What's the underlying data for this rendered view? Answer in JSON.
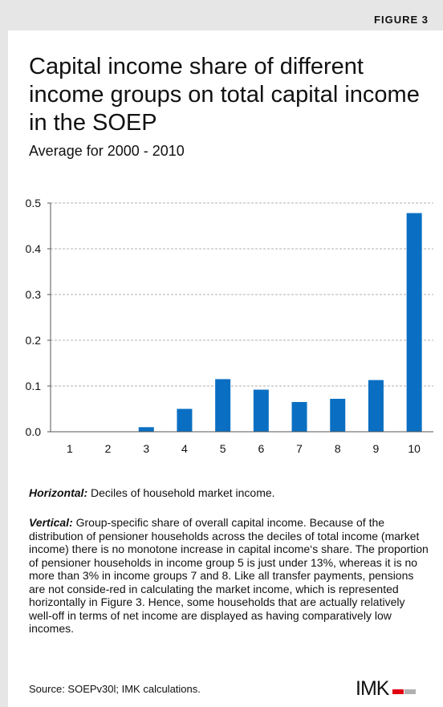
{
  "figure_label": "FIGURE 3",
  "title": "Capital income share of different income groups on total capital income in the SOEP",
  "subtitle": "Average for 2000 - 2010",
  "colors": {
    "bar": "#0a6fc2",
    "grid": "#999999",
    "header": "#e6e6e6",
    "logo_accent": "#e1000f"
  },
  "chart_data": {
    "type": "bar",
    "categories": [
      "1",
      "2",
      "3",
      "4",
      "5",
      "6",
      "7",
      "8",
      "9",
      "10"
    ],
    "values": [
      0.0,
      0.0,
      0.01,
      0.05,
      0.115,
      0.092,
      0.065,
      0.072,
      0.113,
      0.478
    ],
    "ylim": [
      0,
      0.5
    ],
    "yticks": [
      "0.0",
      "0.1",
      "0.2",
      "0.3",
      "0.4",
      "0.5"
    ],
    "xlabel": "",
    "ylabel": "",
    "grid": "horizontal dashed"
  },
  "notes": {
    "horizontal_label": "Horizontal:",
    "horizontal_text": " Deciles of household market income.",
    "vertical_label": "Vertical:",
    "vertical_text": " Group-specific share of overall capital income. Because of the distribution of pensioner households across the deciles of total income (market income) there is no monotone increase in capital income‘s share. The proportion of pensioner households in income group 5 is just under 13%, whereas it is no more than 3% in income groups 7 and 8. Like all transfer payments, pensions are not conside-red in calculating the market income, which is represented horizontally in Figure 3. Hence, some households that are actually relatively well-off in terms of net income are displayed as having comparatively low incomes."
  },
  "source": "Source: SOEPv30l; IMK calculations.",
  "logo": {
    "text": "IMK",
    "icon": "imk-logo"
  }
}
